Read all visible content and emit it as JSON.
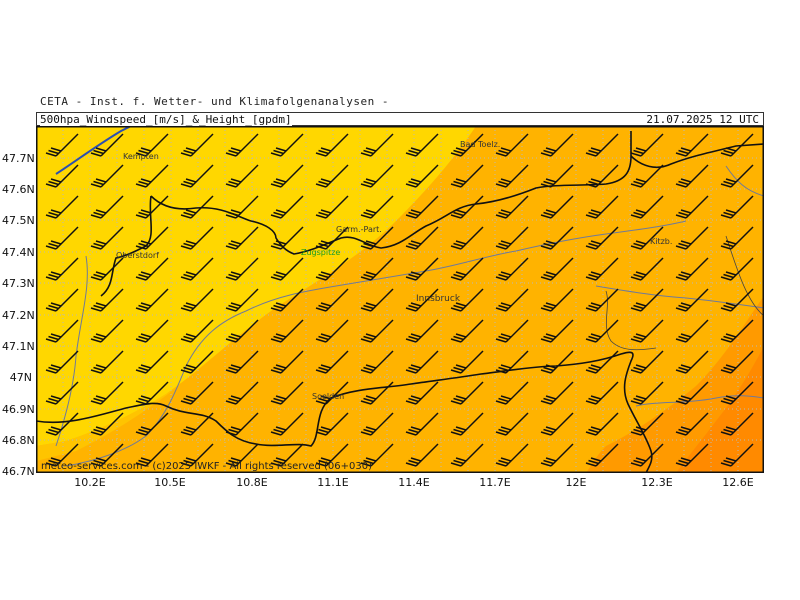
{
  "header": {
    "institute": "CETA - Inst. f. Wetter- und Klimafolgenanalysen -",
    "product": "500hpa_Windspeed_[m/s]_&_Height_[gpdm]",
    "valid_time": "21.07.2025 12 UTC"
  },
  "footer": {
    "credit": "meteo-services.com - (c)2025 IWKF - All rights reserved (06+030)"
  },
  "axes": {
    "lat_labels": [
      "47.7N",
      "47.6N",
      "47.5N",
      "47.4N",
      "47.3N",
      "47.2N",
      "47.1N",
      "47N",
      "46.9N",
      "46.8N",
      "46.7N"
    ],
    "lon_labels": [
      "10.2E",
      "10.5E",
      "10.8E",
      "11.1E",
      "11.4E",
      "11.7E",
      "12E",
      "12.3E",
      "12.6E"
    ]
  },
  "places": [
    {
      "name": "Kempten"
    },
    {
      "name": "Oberstdorf"
    },
    {
      "name": "Bad Toelz."
    },
    {
      "name": "Garm.-Part."
    },
    {
      "name": "Zugspitze"
    },
    {
      "name": "Innsbruck"
    },
    {
      "name": "Kitzb."
    },
    {
      "name": "Soelden"
    }
  ],
  "colors": {
    "field_light": "#ffd700",
    "field_mid": "#ffb300",
    "field_dark": "#ff9500",
    "field_darker": "#ff8a00",
    "border": "#111111",
    "river": "#6f7a9a",
    "height_contour": "#2a4fb0",
    "zugspitze": "#1c9e1c"
  }
}
